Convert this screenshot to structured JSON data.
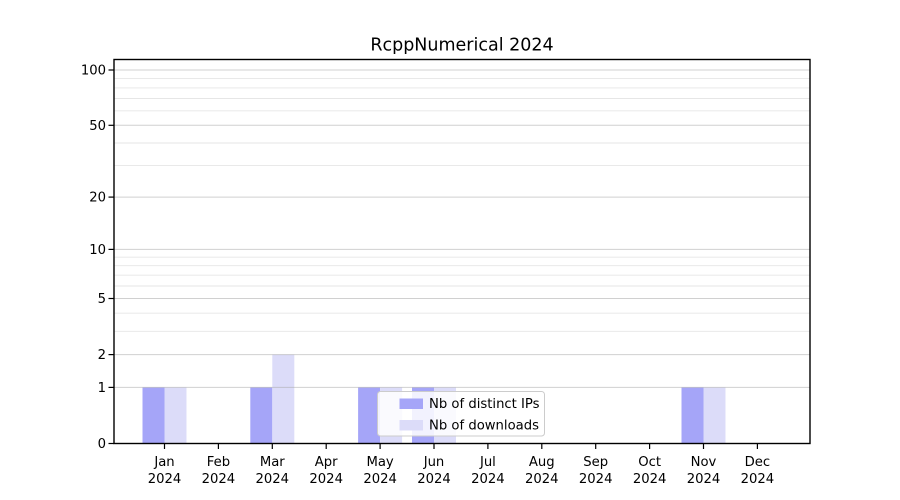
{
  "chart_data": {
    "type": "bar",
    "title": "RcppNumerical 2024",
    "categories": [
      "Jan",
      "Feb",
      "Mar",
      "Apr",
      "May",
      "Jun",
      "Jul",
      "Aug",
      "Sep",
      "Oct",
      "Nov",
      "Dec"
    ],
    "year": "2024",
    "series": [
      {
        "name": "Nb of distinct IPs",
        "color": "#a5a5f8",
        "values": [
          1,
          0,
          1,
          0,
          1,
          1,
          0,
          0,
          0,
          0,
          1,
          0
        ]
      },
      {
        "name": "Nb of downloads",
        "color": "#dcdcf9",
        "values": [
          1,
          0,
          2,
          0,
          1,
          1,
          0,
          0,
          0,
          0,
          1,
          0
        ]
      }
    ],
    "xlabel": "",
    "ylabel": "",
    "yscale": "log1p",
    "ylim": [
      0,
      100
    ],
    "y_major_ticks": [
      0,
      1,
      2,
      5,
      10,
      20,
      50,
      100
    ],
    "y_minor_gridlines": [
      3,
      4,
      6,
      7,
      8,
      9,
      30,
      40,
      60,
      70,
      80,
      90
    ],
    "grid": "horizontal",
    "legend_position": "inside-bottom-center",
    "colors": {
      "major_grid": "#aaaaaa",
      "minor_grid": "#dcdcdc",
      "spine": "#000000",
      "legend_border": "#cccccc",
      "legend_background": "rgba(255,255,255,0.85)"
    }
  }
}
